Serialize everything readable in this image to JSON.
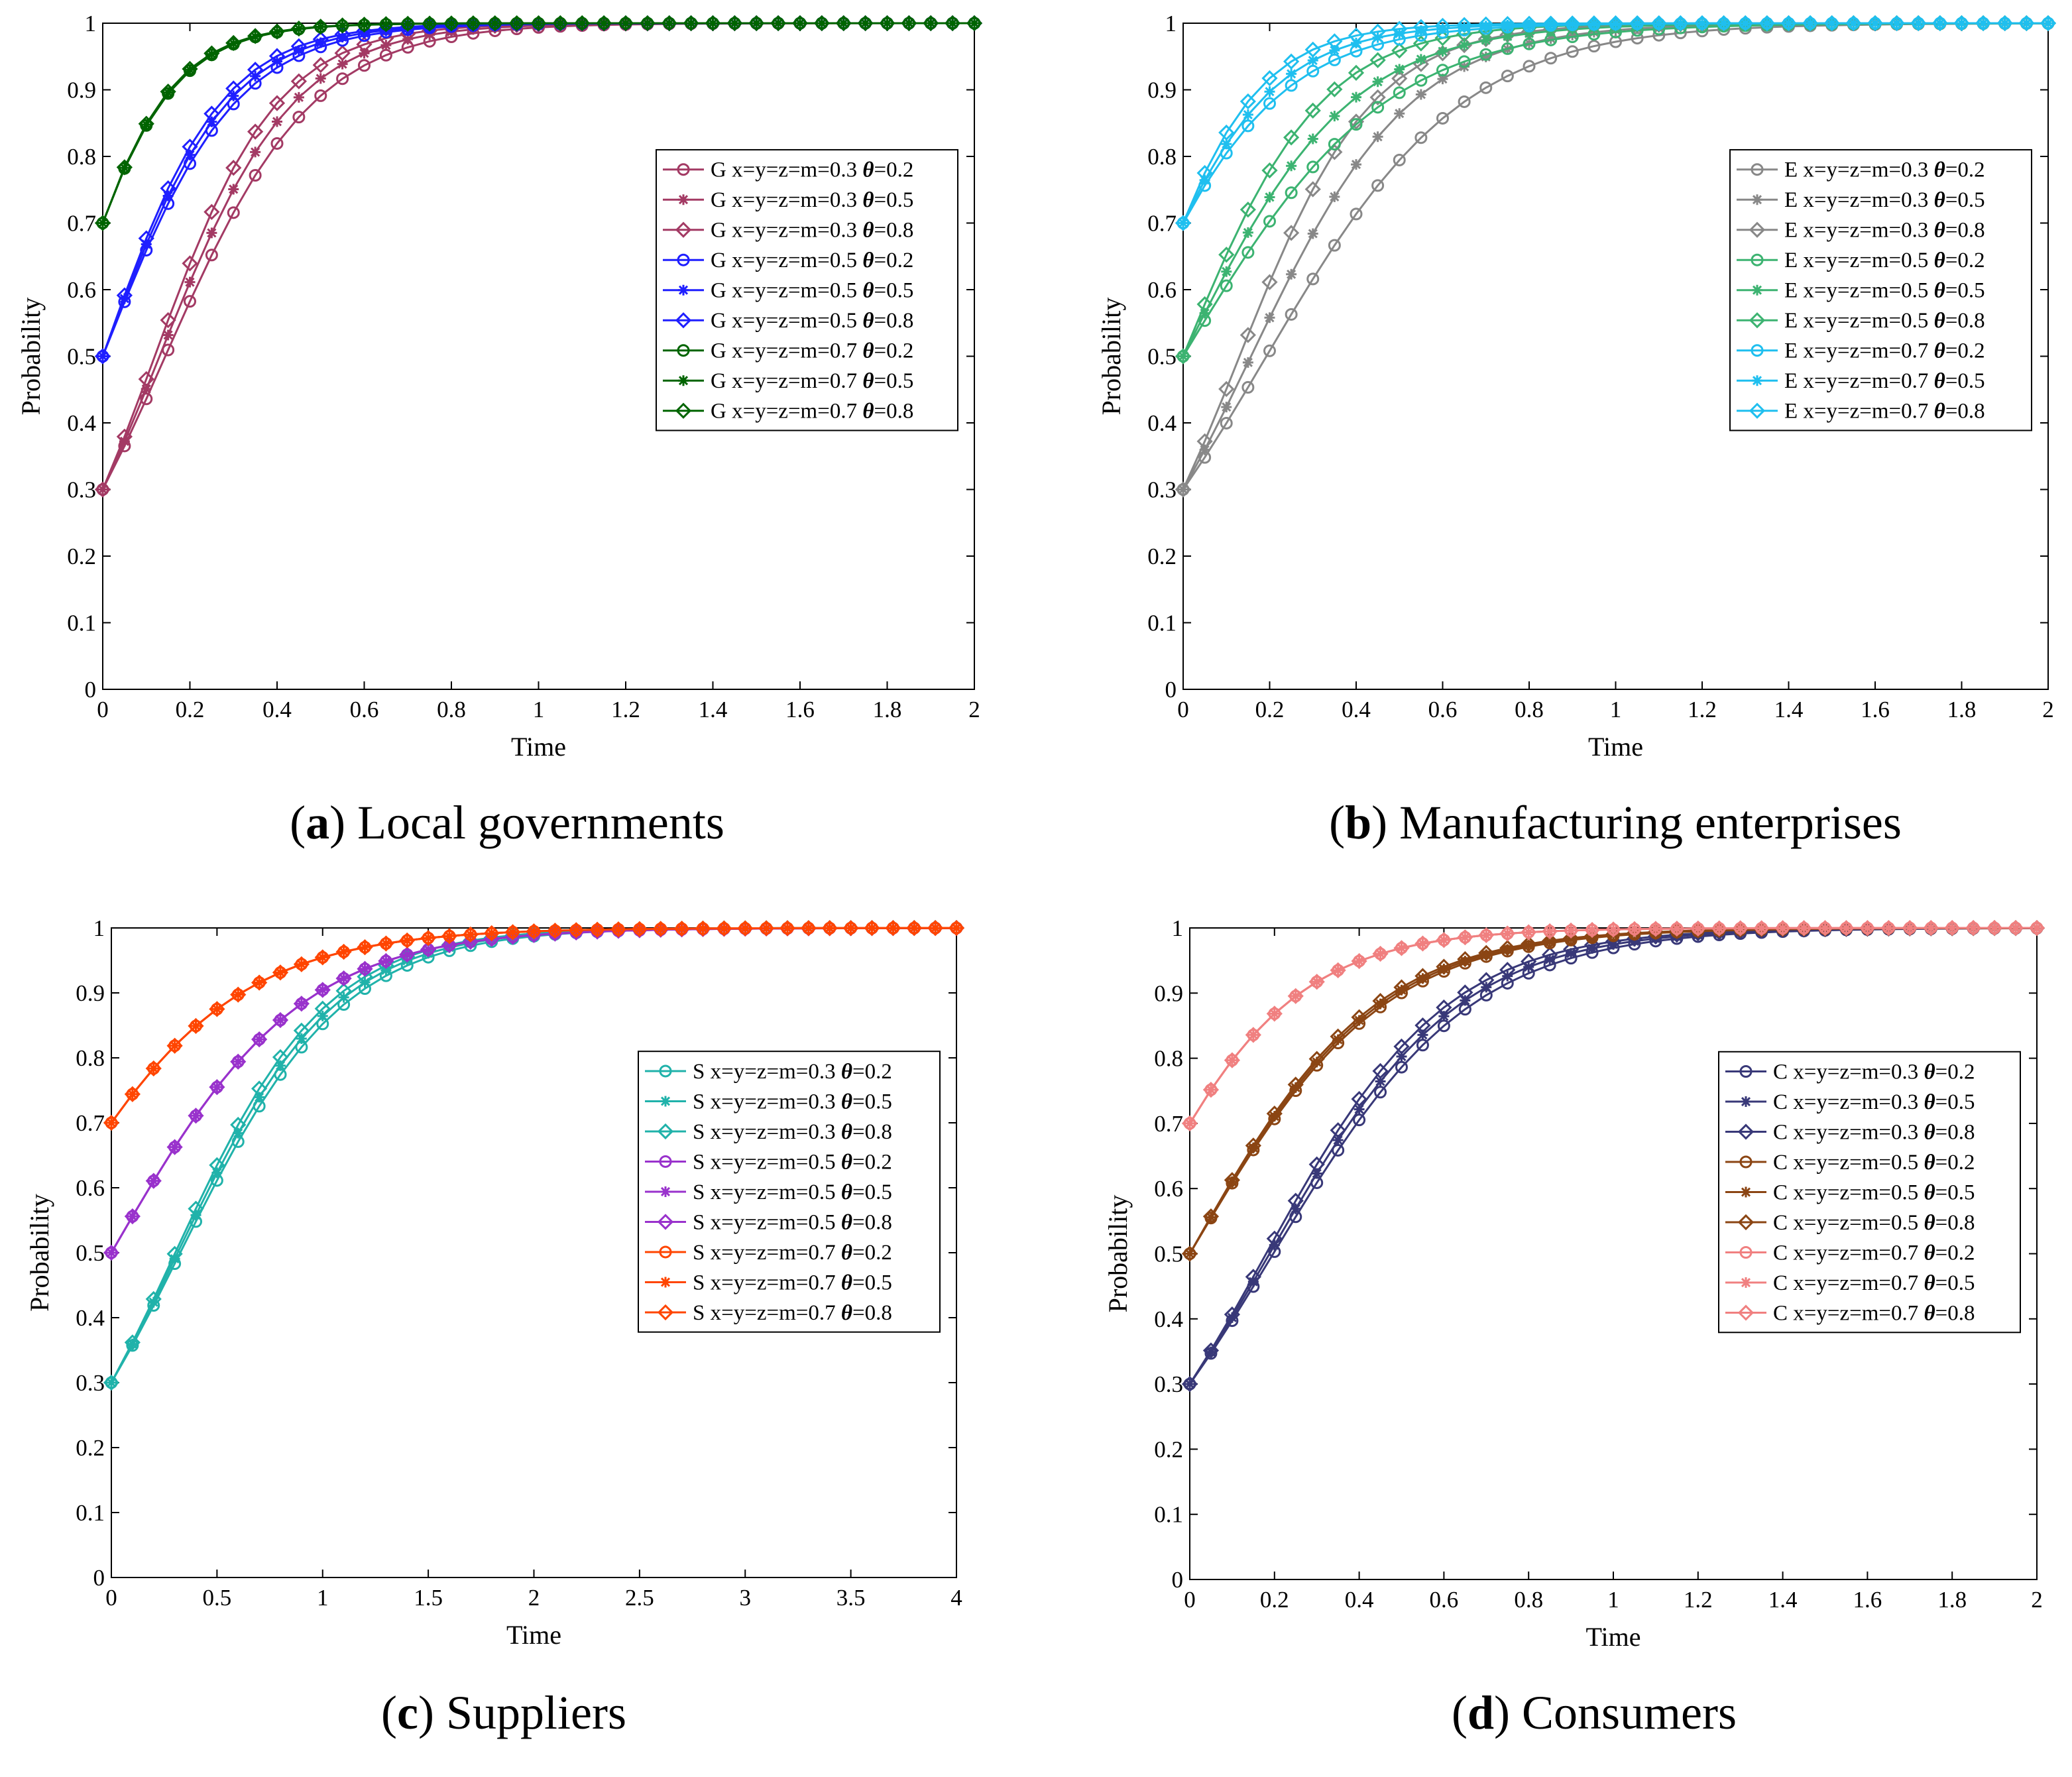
{
  "colors": {
    "local_governments": [
      "#a33a64",
      "#1f1fff",
      "#006400"
    ],
    "manufacturing_enterprises": [
      "#888888",
      "#3cb371",
      "#1fbfef"
    ],
    "suppliers": [
      "#20b2aa",
      "#9932cc",
      "#ff4500"
    ],
    "consumers": [
      "#383878",
      "#8b4513",
      "#f08080"
    ]
  },
  "chart_data": [
    {
      "type": "line",
      "caption_letter": "a",
      "caption_text": "Local governments",
      "xlabel": "Time",
      "ylabel": "Probability",
      "xlim": [
        0,
        2
      ],
      "ylim": [
        0,
        1
      ],
      "xticks": [
        "0",
        "0.2",
        "0.4",
        "0.6",
        "0.8",
        "1",
        "1.2",
        "1.4",
        "1.6",
        "1.8",
        "2"
      ],
      "yticks": [
        "0",
        "0.1",
        "0.2",
        "0.3",
        "0.4",
        "0.5",
        "0.6",
        "0.7",
        "0.8",
        "0.9",
        "1"
      ],
      "legend_position": "center-right",
      "dt": 0.05,
      "series": [
        {
          "name_prefix": "G x=y=z=m=0.3 ",
          "theta": "=0.2",
          "x0": 0.3,
          "k": 5.9,
          "marker": "circle",
          "group": 0
        },
        {
          "name_prefix": "G x=y=z=m=0.3 ",
          "theta": "=0.5",
          "x0": 0.3,
          "k": 6.5,
          "marker": "star",
          "group": 0
        },
        {
          "name_prefix": "G x=y=z=m=0.3 ",
          "theta": "=0.8",
          "x0": 0.3,
          "k": 7.1,
          "marker": "diamond",
          "group": 0
        },
        {
          "name_prefix": "G x=y=z=m=0.5 ",
          "theta": "=0.2",
          "x0": 0.5,
          "k": 6.6,
          "marker": "circle",
          "group": 1
        },
        {
          "name_prefix": "G x=y=z=m=0.5 ",
          "theta": "=0.5",
          "x0": 0.5,
          "k": 7.0,
          "marker": "star",
          "group": 1
        },
        {
          "name_prefix": "G x=y=z=m=0.5 ",
          "theta": "=0.8",
          "x0": 0.5,
          "k": 7.4,
          "marker": "diamond",
          "group": 1
        },
        {
          "name_prefix": "G x=y=z=m=0.7 ",
          "theta": "=0.2",
          "x0": 0.7,
          "k": 8.6,
          "marker": "circle",
          "group": 2
        },
        {
          "name_prefix": "G x=y=z=m=0.7 ",
          "theta": "=0.5",
          "x0": 0.7,
          "k": 8.7,
          "marker": "star",
          "group": 2
        },
        {
          "name_prefix": "G x=y=z=m=0.7 ",
          "theta": "=0.8",
          "x0": 0.7,
          "k": 8.8,
          "marker": "diamond",
          "group": 2
        }
      ]
    },
    {
      "type": "line",
      "caption_letter": "b",
      "caption_text": "Manufacturing enterprises",
      "xlabel": "Time",
      "ylabel": "Probability",
      "xlim": [
        0,
        2
      ],
      "ylim": [
        0,
        1
      ],
      "xticks": [
        "0",
        "0.2",
        "0.4",
        "0.6",
        "0.8",
        "1",
        "1.2",
        "1.4",
        "1.6",
        "1.8",
        "2"
      ],
      "yticks": [
        "0",
        "0.1",
        "0.2",
        "0.3",
        "0.4",
        "0.5",
        "0.6",
        "0.7",
        "0.8",
        "0.9",
        "1"
      ],
      "legend_position": "center-right",
      "dt": 0.05,
      "series": [
        {
          "name_prefix": "E x=y=z=m=0.3 ",
          "theta": "=0.2",
          "x0": 0.3,
          "k": 4.4,
          "marker": "circle",
          "group": 0
        },
        {
          "name_prefix": "E x=y=z=m=0.3 ",
          "theta": "=0.5",
          "x0": 0.3,
          "k": 5.4,
          "marker": "star",
          "group": 0
        },
        {
          "name_prefix": "E x=y=z=m=0.3 ",
          "theta": "=0.8",
          "x0": 0.3,
          "k": 6.5,
          "marker": "diamond",
          "group": 0
        },
        {
          "name_prefix": "E x=y=z=m=0.5 ",
          "theta": "=0.2",
          "x0": 0.5,
          "k": 4.3,
          "marker": "circle",
          "group": 1
        },
        {
          "name_prefix": "E x=y=z=m=0.5 ",
          "theta": "=0.5",
          "x0": 0.5,
          "k": 5.2,
          "marker": "star",
          "group": 1
        },
        {
          "name_prefix": "E x=y=z=m=0.5 ",
          "theta": "=0.8",
          "x0": 0.5,
          "k": 6.3,
          "marker": "diamond",
          "group": 1
        },
        {
          "name_prefix": "E x=y=z=m=0.7 ",
          "theta": "=0.2",
          "x0": 0.7,
          "k": 5.7,
          "marker": "circle",
          "group": 2
        },
        {
          "name_prefix": "E x=y=z=m=0.7 ",
          "theta": "=0.5",
          "x0": 0.7,
          "k": 6.6,
          "marker": "star",
          "group": 2
        },
        {
          "name_prefix": "E x=y=z=m=0.7 ",
          "theta": "=0.8",
          "x0": 0.7,
          "k": 7.8,
          "marker": "diamond",
          "group": 2
        }
      ]
    },
    {
      "type": "line",
      "caption_letter": "c",
      "caption_text": "Suppliers",
      "xlabel": "Time",
      "ylabel": "Probability",
      "xlim": [
        0,
        4
      ],
      "ylim": [
        0,
        1
      ],
      "xticks": [
        "0",
        "0.5",
        "1",
        "1.5",
        "2",
        "2.5",
        "3",
        "3.5",
        "4"
      ],
      "yticks": [
        "0",
        "0.1",
        "0.2",
        "0.3",
        "0.4",
        "0.5",
        "0.6",
        "0.7",
        "0.8",
        "0.9",
        "1"
      ],
      "legend_position": "center-right",
      "dt": 0.1,
      "series": [
        {
          "name_prefix": "S x=y=z=m=0.3 ",
          "theta": "=0.2",
          "x0": 0.3,
          "k": 2.6,
          "marker": "circle",
          "group": 0
        },
        {
          "name_prefix": "S x=y=z=m=0.3 ",
          "theta": "=0.5",
          "x0": 0.3,
          "k": 2.7,
          "marker": "star",
          "group": 0
        },
        {
          "name_prefix": "S x=y=z=m=0.3 ",
          "theta": "=0.8",
          "x0": 0.3,
          "k": 2.8,
          "marker": "diamond",
          "group": 0
        },
        {
          "name_prefix": "S x=y=z=m=0.5 ",
          "theta": "=0.2",
          "x0": 0.5,
          "k": 2.25,
          "marker": "circle",
          "group": 1
        },
        {
          "name_prefix": "S x=y=z=m=0.5 ",
          "theta": "=0.5",
          "x0": 0.5,
          "k": 2.25,
          "marker": "star",
          "group": 1
        },
        {
          "name_prefix": "S x=y=z=m=0.5 ",
          "theta": "=0.8",
          "x0": 0.5,
          "k": 2.25,
          "marker": "diamond",
          "group": 1
        },
        {
          "name_prefix": "S x=y=z=m=0.7 ",
          "theta": "=0.2",
          "x0": 0.7,
          "k": 2.2,
          "marker": "circle",
          "group": 2
        },
        {
          "name_prefix": "S x=y=z=m=0.7 ",
          "theta": "=0.5",
          "x0": 0.7,
          "k": 2.2,
          "marker": "star",
          "group": 2
        },
        {
          "name_prefix": "S x=y=z=m=0.7 ",
          "theta": "=0.8",
          "x0": 0.7,
          "k": 2.2,
          "marker": "diamond",
          "group": 2
        }
      ]
    },
    {
      "type": "line",
      "caption_letter": "d",
      "caption_text": "Consumers",
      "xlabel": "Time",
      "ylabel": "Probability",
      "xlim": [
        0,
        2
      ],
      "ylim": [
        0,
        1
      ],
      "xticks": [
        "0",
        "0.2",
        "0.4",
        "0.6",
        "0.8",
        "1",
        "1.2",
        "1.4",
        "1.6",
        "1.8",
        "2"
      ],
      "yticks": [
        "0",
        "0.1",
        "0.2",
        "0.3",
        "0.4",
        "0.5",
        "0.6",
        "0.7",
        "0.8",
        "0.9",
        "1"
      ],
      "legend_position": "center-right",
      "dt": 0.05,
      "series": [
        {
          "name_prefix": "C x=y=z=m=0.3 ",
          "theta": "=0.2",
          "x0": 0.3,
          "k": 4.3,
          "marker": "circle",
          "group": 0
        },
        {
          "name_prefix": "C x=y=z=m=0.3 ",
          "theta": "=0.5",
          "x0": 0.3,
          "k": 4.5,
          "marker": "star",
          "group": 0
        },
        {
          "name_prefix": "C x=y=z=m=0.3 ",
          "theta": "=0.8",
          "x0": 0.3,
          "k": 4.7,
          "marker": "diamond",
          "group": 0
        },
        {
          "name_prefix": "C x=y=z=m=0.5 ",
          "theta": "=0.2",
          "x0": 0.5,
          "k": 4.4,
          "marker": "circle",
          "group": 1
        },
        {
          "name_prefix": "C x=y=z=m=0.5 ",
          "theta": "=0.5",
          "x0": 0.5,
          "k": 4.5,
          "marker": "star",
          "group": 1
        },
        {
          "name_prefix": "C x=y=z=m=0.5 ",
          "theta": "=0.8",
          "x0": 0.5,
          "k": 4.6,
          "marker": "diamond",
          "group": 1
        },
        {
          "name_prefix": "C x=y=z=m=0.7 ",
          "theta": "=0.2",
          "x0": 0.7,
          "k": 5.2,
          "marker": "circle",
          "group": 2
        },
        {
          "name_prefix": "C x=y=z=m=0.7 ",
          "theta": "=0.5",
          "x0": 0.7,
          "k": 5.2,
          "marker": "star",
          "group": 2
        },
        {
          "name_prefix": "C x=y=z=m=0.7 ",
          "theta": "=0.8",
          "x0": 0.7,
          "k": 5.2,
          "marker": "diamond",
          "group": 2
        }
      ]
    }
  ]
}
